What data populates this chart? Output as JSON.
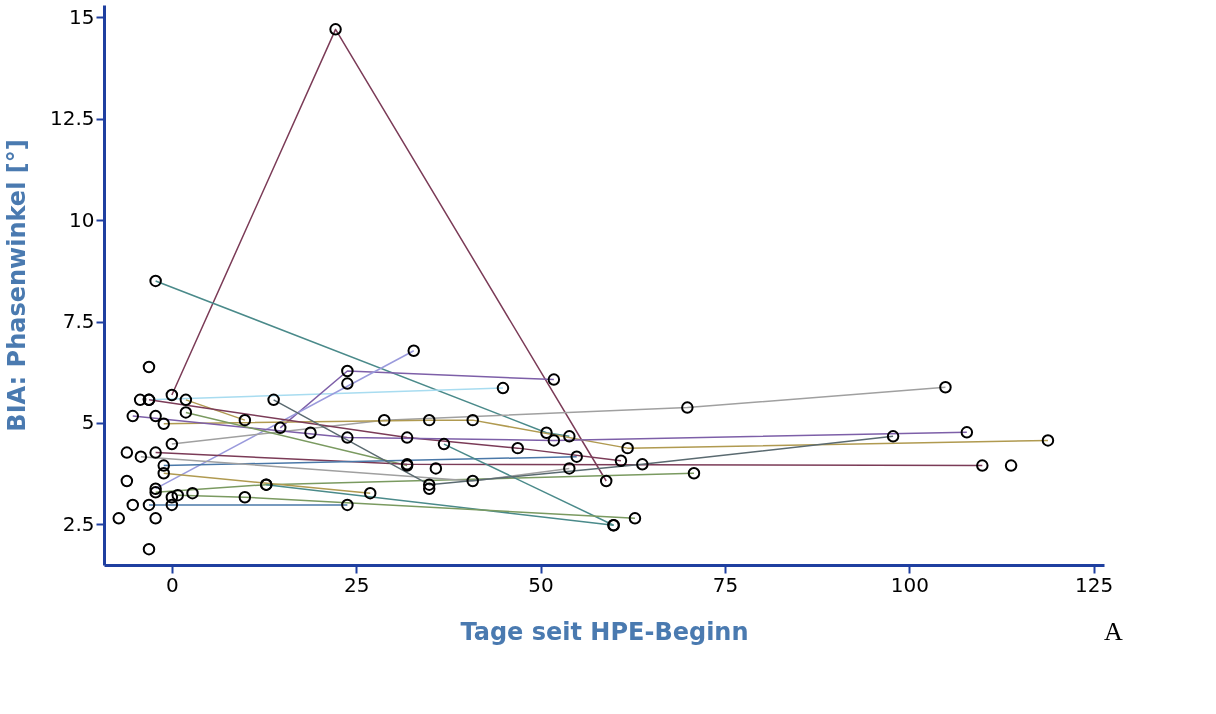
{
  "chart_data": {
    "type": "line",
    "xlabel": "Tage seit HPE-Beginn",
    "ylabel": "BIA: Phasenwinkel [°]",
    "annotations": [
      "A"
    ],
    "xlim": [
      -9.2,
      126.4
    ],
    "xticks": [
      0,
      25,
      50,
      75,
      100,
      125
    ],
    "ylim": [
      1.5,
      15.3
    ],
    "yticks": [
      2.5,
      5,
      7.5,
      10,
      12.5,
      15
    ],
    "grid": false,
    "legend": false,
    "marker": "circle",
    "line_style": "solid",
    "series": [
      {
        "color": "#7b3b57",
        "x": [
          0,
          22.2,
          58.9
        ],
        "values": [
          5.69,
          14.7,
          3.57
        ]
      },
      {
        "color": "#4a8a8a",
        "x": [
          -2.2,
          50.8,
          53.9
        ],
        "values": [
          8.5,
          4.76,
          4.67
        ]
      },
      {
        "color": "#a8dcf0",
        "x": [
          -3.1,
          44.9
        ],
        "values": [
          5.57,
          5.86
        ]
      },
      {
        "color": "#7d5fa8",
        "x": [
          14.7,
          23.8,
          51.8
        ],
        "values": [
          4.88,
          6.28,
          6.07
        ]
      },
      {
        "color": "#9a9adc",
        "x": [
          -2.2,
          32.8
        ],
        "values": [
          3.38,
          6.78
        ]
      },
      {
        "color": "#a0a0a0",
        "x": [
          0,
          28.8,
          69.9,
          104.9
        ],
        "values": [
          4.48,
          5.07,
          5.38,
          5.88
        ]
      },
      {
        "color": "#b09a50",
        "x": [
          -1.1,
          34.9,
          40.8,
          61.8,
          118.8
        ],
        "values": [
          4.98,
          5.07,
          5.07,
          4.38,
          4.57
        ]
      },
      {
        "color": "#b09a50",
        "x": [
          1.9,
          9.9
        ],
        "values": [
          5.57,
          5.07
        ]
      },
      {
        "color": "#7b3b57",
        "x": [
          -3.1,
          31.9,
          46.9,
          60.9
        ],
        "values": [
          5.57,
          4.64,
          4.38,
          4.07
        ]
      },
      {
        "color": "#7d5fa8",
        "x": [
          -5.3,
          23.8,
          51.8,
          107.8
        ],
        "values": [
          5.17,
          4.64,
          4.57,
          4.77
        ]
      },
      {
        "color": "#7a9a60",
        "x": [
          1.9,
          31.9
        ],
        "values": [
          5.26,
          3.95
        ]
      },
      {
        "color": "#7a9a60",
        "x": [
          -2.2,
          12.8,
          70.8
        ],
        "values": [
          3.29,
          3.48,
          3.76
        ]
      },
      {
        "color": "#7b3b57",
        "x": [
          -2.2,
          31.9,
          109.9
        ],
        "values": [
          4.27,
          3.98,
          3.95
        ]
      },
      {
        "color": "#4a78a8",
        "x": [
          -1.1,
          54.9
        ],
        "values": [
          3.95,
          4.17
        ]
      },
      {
        "color": "#a0a0a0",
        "x": [
          -4.2,
          40.8,
          53.9
        ],
        "values": [
          4.17,
          3.57,
          3.88
        ]
      },
      {
        "color": "#b09a50",
        "x": [
          -1.1,
          26.9
        ],
        "values": [
          3.76,
          3.27
        ]
      },
      {
        "color": "#4a8a8a",
        "x": [
          36.9,
          59.9
        ],
        "values": [
          4.48,
          2.48
        ]
      },
      {
        "color": "#4a8a8a",
        "x": [
          12.8,
          59.9
        ],
        "values": [
          3.48,
          2.48
        ]
      },
      {
        "color": "#7a9a60",
        "x": [
          0.8,
          9.9,
          62.8
        ],
        "values": [
          3.22,
          3.17,
          2.65
        ]
      },
      {
        "color": "#4a78a8",
        "x": [
          -3.1,
          23.8
        ],
        "values": [
          2.98,
          2.98
        ]
      },
      {
        "color": "#5a6a70",
        "x": [
          13.8,
          34.9,
          63.8,
          97.8
        ],
        "values": [
          5.57,
          3.48,
          3.98,
          4.67
        ]
      },
      {
        "type": "scatter",
        "color": "#000000",
        "x": [
          -3.1,
          -4.3,
          -2.2,
          -6.1,
          -6.1,
          0,
          2.8,
          -5.3,
          0,
          -7.2,
          -2.2,
          -3.1,
          18.8,
          23.8,
          35.8,
          34.9,
          113.8
        ],
        "values": [
          6.38,
          5.57,
          5.17,
          4.27,
          3.57,
          3.17,
          3.27,
          2.98,
          2.98,
          2.65,
          2.65,
          1.89,
          4.76,
          5.97,
          3.88,
          3.38,
          3.95
        ]
      }
    ]
  }
}
